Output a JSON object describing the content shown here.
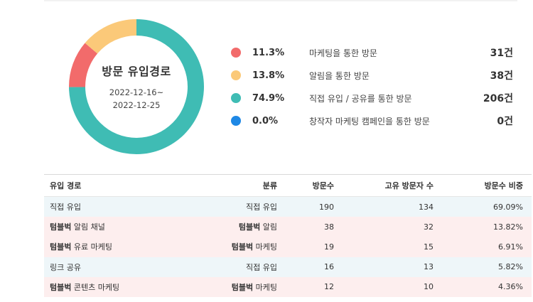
{
  "donut": {
    "title": "방문 유입경로",
    "date_start": "2022-12-16~",
    "date_end": "2022-12-25"
  },
  "chart_data": {
    "type": "pie",
    "title": "방문 유입경로",
    "slices": [
      {
        "label": "마케팅을 통한 방문",
        "percent": 11.3,
        "count": 31,
        "color": "#f26b6b"
      },
      {
        "label": "알림을 통한 방문",
        "percent": 13.8,
        "count": 38,
        "color": "#fbc979"
      },
      {
        "label": "직접 유입 / 공유를 통한 방문",
        "percent": 74.9,
        "count": 206,
        "color": "#3fbcb4"
      },
      {
        "label": "창작자 마케팅 캠페인을 통한 방문",
        "percent": 0.0,
        "count": 0,
        "color": "#1e88e5"
      }
    ]
  },
  "legend": [
    {
      "pct": "11.3%",
      "label": "마케팅을 통한 방문",
      "count": "31건",
      "color": "#f26b6b"
    },
    {
      "pct": "13.8%",
      "label": "알림을 통한 방문",
      "count": "38건",
      "color": "#fbc979"
    },
    {
      "pct": "74.9%",
      "label": "직접 유입 / 공유를 통한 방문",
      "count": "206건",
      "color": "#3fbcb4"
    },
    {
      "pct": "0.0%",
      "label": "창작자 마케팅 캠페인을 통한 방문",
      "count": "0건",
      "color": "#1e88e5"
    }
  ],
  "table": {
    "headers": [
      "유입 경로",
      "분류",
      "방문수",
      "고유 방문자 수",
      "방문수 비중"
    ],
    "rows": [
      {
        "route_brand": "",
        "route": "직접 유입",
        "cat_brand": "",
        "cat": "직접 유입",
        "visits": "190",
        "unique": "134",
        "share": "69.09%",
        "tone": "blue"
      },
      {
        "route_brand": "텀블벅",
        "route": " 알림 채널",
        "cat_brand": "텀블벅",
        "cat": " 알림",
        "visits": "38",
        "unique": "32",
        "share": "13.82%",
        "tone": "pink"
      },
      {
        "route_brand": "텀블벅",
        "route": " 유료 마케팅",
        "cat_brand": "텀블벅",
        "cat": " 마케팅",
        "visits": "19",
        "unique": "15",
        "share": "6.91%",
        "tone": "pink"
      },
      {
        "route_brand": "",
        "route": "링크 공유",
        "cat_brand": "",
        "cat": "직접 유입",
        "visits": "16",
        "unique": "13",
        "share": "5.82%",
        "tone": "blue"
      },
      {
        "route_brand": "텀블벅",
        "route": " 콘텐츠 마케팅",
        "cat_brand": "텀블벅",
        "cat": " 마케팅",
        "visits": "12",
        "unique": "10",
        "share": "4.36%",
        "tone": "pink"
      }
    ]
  }
}
